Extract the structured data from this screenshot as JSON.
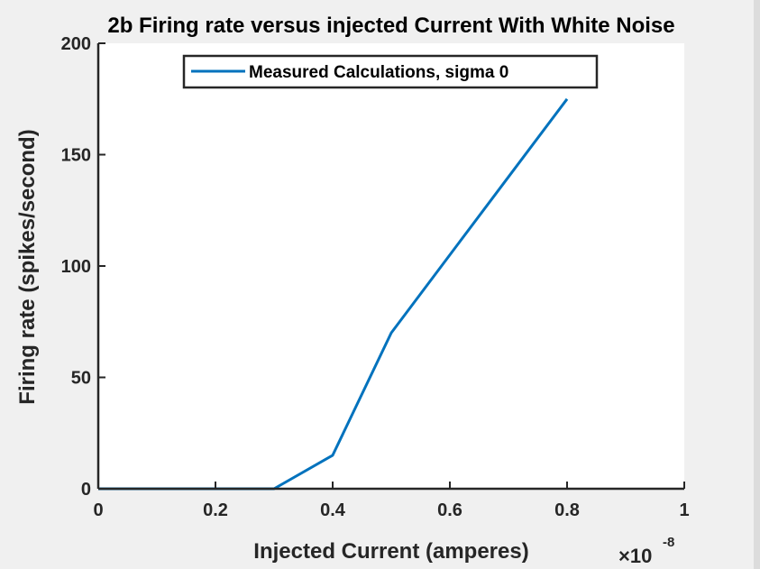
{
  "chart_data": {
    "type": "line",
    "title": "2b Firing rate versus injected Current With White Noise",
    "xlabel": "Injected Current (amperes)",
    "ylabel": "Firing rate (spikes/second)",
    "x_exponent_base": "×10",
    "x_exponent_power": "-8",
    "xlim": [
      0,
      1
    ],
    "ylim": [
      0,
      200
    ],
    "x_ticks": [
      0,
      0.2,
      0.4,
      0.6,
      0.8,
      1
    ],
    "x_tick_labels": [
      "0",
      "0.2",
      "0.4",
      "0.6",
      "0.8",
      "1"
    ],
    "y_ticks": [
      0,
      50,
      100,
      150,
      200
    ],
    "y_tick_labels": [
      "0",
      "50",
      "100",
      "150",
      "200"
    ],
    "grid": false,
    "legend_position": "top-center",
    "series": [
      {
        "name": "Measured Calculations, sigma 0",
        "color": "#0072bd",
        "x": [
          0,
          0.1,
          0.2,
          0.3,
          0.4,
          0.5,
          0.6,
          0.7,
          0.8
        ],
        "y": [
          0,
          0,
          0,
          0,
          15,
          70,
          105,
          140,
          175
        ]
      }
    ]
  }
}
